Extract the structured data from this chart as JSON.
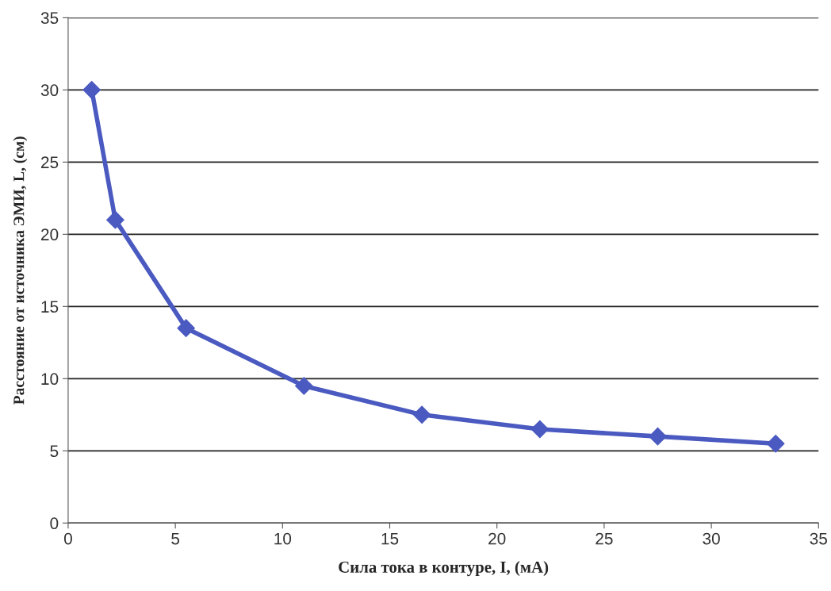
{
  "chart_data": {
    "type": "line",
    "xlabel": "Сила тока в контуре, I, (мА)",
    "ylabel": "Расстояние от источника ЭМИ, L, (см)",
    "x": [
      1.1,
      2.2,
      5.5,
      11,
      16.5,
      22,
      27.5,
      33
    ],
    "series": [
      {
        "color": "#4a5ac0",
        "values": [
          30,
          21,
          13.5,
          9.5,
          7.5,
          6.5,
          6,
          5.5
        ]
      }
    ],
    "xlim": [
      0,
      35
    ],
    "xticks": [
      0,
      5,
      10,
      15,
      20,
      25,
      30,
      35
    ],
    "ylim": [
      0,
      35
    ],
    "yticks": [
      0,
      5,
      10,
      15,
      20,
      25,
      30,
      35
    ],
    "grid": "y",
    "marker": "diamond",
    "line_style": "solid"
  }
}
